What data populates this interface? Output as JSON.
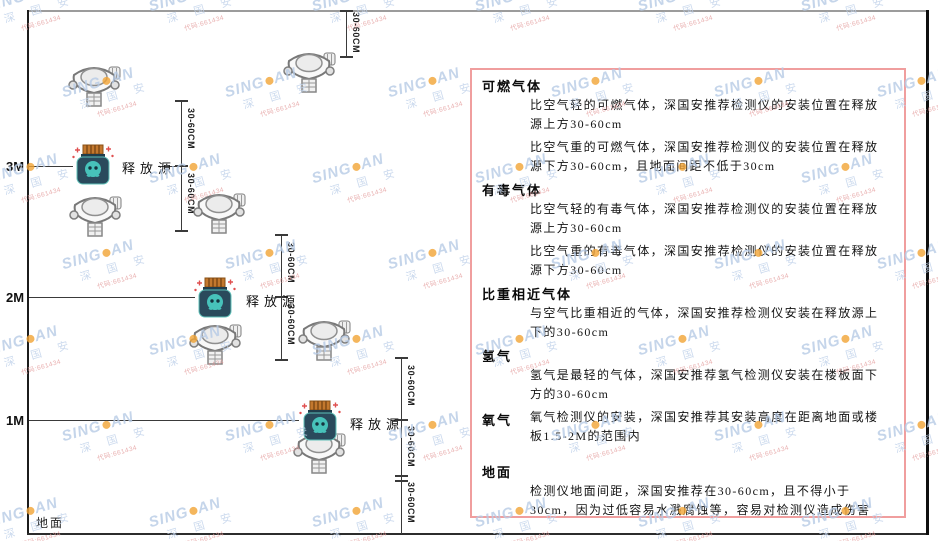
{
  "labels": {
    "dim": "30-60CM",
    "release_source": "释放源",
    "ground": "地面"
  },
  "axis": {
    "marks": [
      "3M",
      "2M",
      "1M"
    ]
  },
  "watermark": {
    "brand_en_left": "SING",
    "brand_en_right": "AN",
    "brand_cn": "深 国 安",
    "code": "代码:661434"
  },
  "colors": {
    "panel_border": "#f09e9e",
    "watermark_blue": "#b7cbe6",
    "source_body": "#2a4a5c",
    "source_cap": "#c3782e",
    "source_face": "#47c2ba",
    "sparkle_red": "#e05050"
  },
  "panel": {
    "sections": [
      {
        "title": "可燃气体",
        "paragraphs": [
          "比空气轻的可燃气体，深国安推荐检测仪的安装位置在释放源上方30-60cm",
          "比空气重的可燃气体，深国安推荐检测仪的安装位置在释放源下方30-60cm，且地面间距不低于30cm"
        ]
      },
      {
        "title": "有毒气体",
        "paragraphs": [
          "比空气轻的有毒气体，深国安推荐检测仪的安装位置在释放源上方30-60cm",
          "比空气重的有毒气体，深国安推荐检测仪的安装位置在释放源下方30-60cm"
        ]
      },
      {
        "title": "比重相近气体",
        "paragraphs": [
          "与空气比重相近的气体，深国安推荐检测仪安装在释放源上下的30-60cm"
        ]
      },
      {
        "title": "氢气",
        "paragraphs": [
          "氢气是最轻的气体，深国安推荐氢气检测仪安装在楼板面下方的30-60cm"
        ]
      },
      {
        "title": "氧气",
        "inline": true,
        "paragraphs": [
          "氧气检测仪的安装，深国安推荐其安装高度在距离地面或楼板1.5-2M的范围内"
        ]
      },
      {
        "title": "地面",
        "paragraphs": [
          "检测仪地面间距，深国安推荐在30-60cm，且不得小于30cm，因为过低容易水溅腐蚀等，容易对检测仪造成伤害"
        ]
      }
    ]
  }
}
